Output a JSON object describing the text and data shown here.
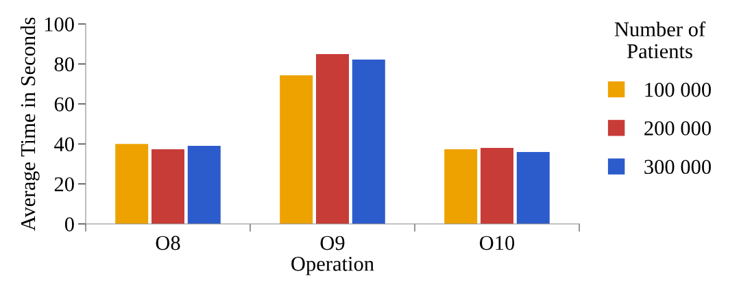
{
  "chart_data": {
    "type": "bar",
    "xlabel": "Operation",
    "ylabel": "Average Time in Seconds",
    "legend_title": "Number of\nPatients",
    "categories": [
      "O8",
      "O9",
      "O10"
    ],
    "series": [
      {
        "name": "100 000",
        "color": "#eea200",
        "values": [
          40,
          74.3,
          37.3
        ]
      },
      {
        "name": "200 000",
        "color": "#c83c37",
        "values": [
          37.3,
          84.9,
          38
        ]
      },
      {
        "name": "300 000",
        "color": "#2c5bcb",
        "values": [
          39,
          82.2,
          36
        ]
      }
    ],
    "ylim": [
      0,
      100
    ],
    "yticks": [
      0,
      20,
      40,
      60,
      80,
      100
    ],
    "grid": false,
    "legend": "right"
  }
}
